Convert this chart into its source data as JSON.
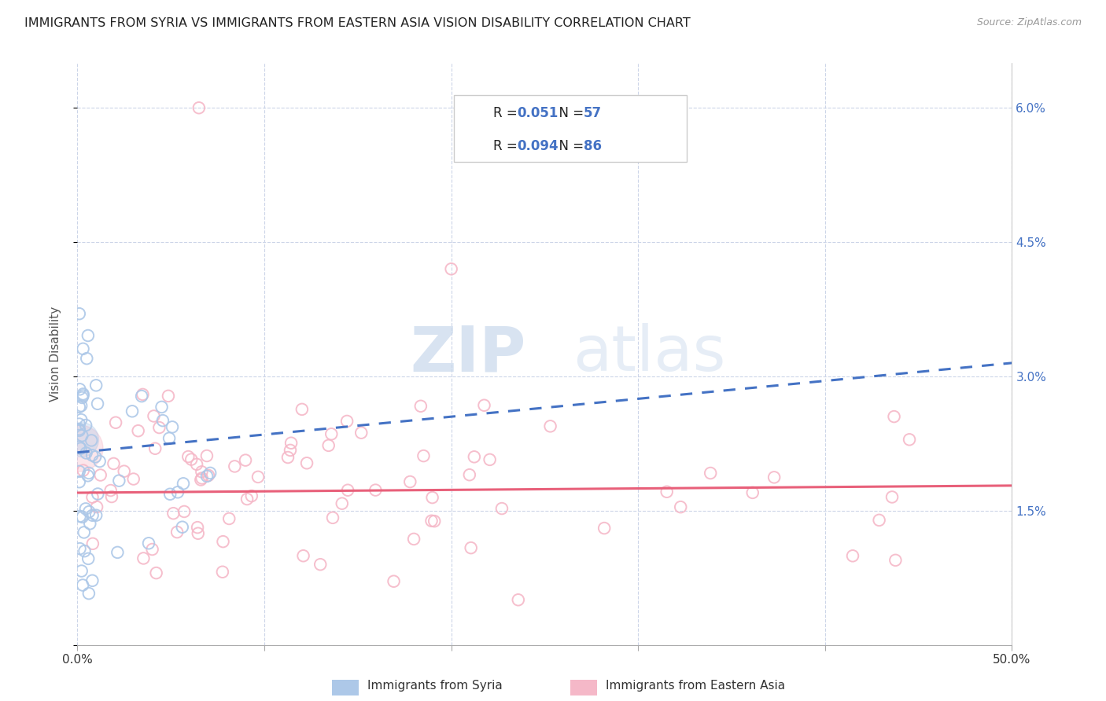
{
  "title": "IMMIGRANTS FROM SYRIA VS IMMIGRANTS FROM EASTERN ASIA VISION DISABILITY CORRELATION CHART",
  "source": "Source: ZipAtlas.com",
  "ylabel": "Vision Disability",
  "xmin": 0.0,
  "xmax": 0.5,
  "ymin": 0.0,
  "ymax": 0.065,
  "yticks": [
    0.0,
    0.015,
    0.03,
    0.045,
    0.06
  ],
  "ytick_labels_right": [
    "",
    "1.5%",
    "3.0%",
    "4.5%",
    "6.0%"
  ],
  "xticks": [
    0.0,
    0.1,
    0.2,
    0.3,
    0.4,
    0.5
  ],
  "xtick_labels": [
    "0.0%",
    "",
    "",
    "",
    "",
    "50.0%"
  ],
  "legend_R_syria": "R =  0.051",
  "legend_N_syria": "N = 57",
  "legend_R_eastern": "R =  0.094",
  "legend_N_eastern": "N = 86",
  "legend_label_syria": "Immigrants from Syria",
  "legend_label_eastern": "Immigrants from Eastern Asia",
  "syria_fill_color": "#adc8e8",
  "eastern_fill_color": "#f5b8c8",
  "syria_line_color": "#4472c4",
  "eastern_line_color": "#e8607a",
  "background_color": "#ffffff",
  "grid_color": "#ccd5e8",
  "watermark_zip": "ZIP",
  "watermark_atlas": "atlas",
  "syria_slope": 0.02,
  "syria_intercept": 0.0215,
  "eastern_slope": 0.0016,
  "eastern_intercept": 0.017
}
